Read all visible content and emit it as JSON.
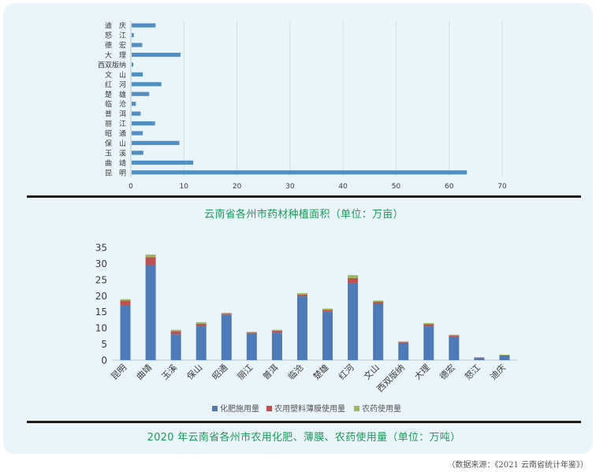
{
  "chart_data": [
    {
      "type": "bar",
      "orientation": "horizontal",
      "title": "云南省各州市药材种植面积（单位：万亩）",
      "categories": [
        "昆　明",
        "曲　靖",
        "玉　溪",
        "保　山",
        "昭　通",
        "丽　江",
        "普　洱",
        "临　沧",
        "楚　雄",
        "红　河",
        "文　山",
        "西双版纳",
        "大　理",
        "德　宏",
        "怒　江",
        "迪　庆"
      ],
      "values": [
        63.2,
        11.6,
        2.2,
        9.0,
        2.1,
        4.4,
        1.7,
        0.8,
        3.3,
        5.6,
        2.1,
        0.3,
        9.2,
        2.0,
        0.4,
        4.5
      ],
      "xlim": [
        0,
        70
      ],
      "xticks": [
        "0",
        "10",
        "20",
        "30",
        "40",
        "50",
        "60",
        "70"
      ],
      "grid": true,
      "bar_color": "#4f8fc4"
    },
    {
      "type": "bar",
      "stacked": true,
      "title": "2020 年云南省各州市农用化肥、薄膜、农药使用量（单位：万吨）",
      "categories": [
        "昆明",
        "曲靖",
        "玉溪",
        "保山",
        "昭通",
        "丽江",
        "普洱",
        "临沧",
        "楚雄",
        "红河",
        "文山",
        "西双版纳",
        "大理",
        "德宏",
        "怒江",
        "迪庆"
      ],
      "series": [
        {
          "name": "化肥施用量",
          "color": "#4e7bb8",
          "values": [
            17.0,
            29.5,
            8.0,
            10.5,
            14.0,
            8.2,
            8.5,
            19.8,
            15.0,
            24.0,
            17.5,
            5.4,
            10.5,
            7.3,
            0.7,
            1.4
          ]
        },
        {
          "name": "农用塑料薄膜使用量",
          "color": "#c0504d",
          "values": [
            1.5,
            2.5,
            1.0,
            0.8,
            0.4,
            0.3,
            0.6,
            0.5,
            0.6,
            1.5,
            0.6,
            0.2,
            0.7,
            0.3,
            0.1,
            0.1
          ]
        },
        {
          "name": "农药使用量",
          "color": "#9bbb59",
          "values": [
            0.4,
            0.8,
            0.4,
            0.5,
            0.3,
            0.3,
            0.3,
            0.5,
            0.4,
            0.9,
            0.4,
            0.2,
            0.3,
            0.3,
            0.1,
            0.2
          ]
        }
      ],
      "ylim": [
        0,
        35
      ],
      "yticks": [
        "0",
        "5",
        "10",
        "15",
        "20",
        "25",
        "30",
        "35"
      ],
      "legend_position": "bottom"
    }
  ],
  "caption1": "云南省各州市药材种植面积（单位：万亩）",
  "caption2": "2020 年云南省各州市农用化肥、薄膜、农药使用量（单位：万吨）",
  "source_note": "（数据来源：《2021 云南省统计年鉴》）"
}
